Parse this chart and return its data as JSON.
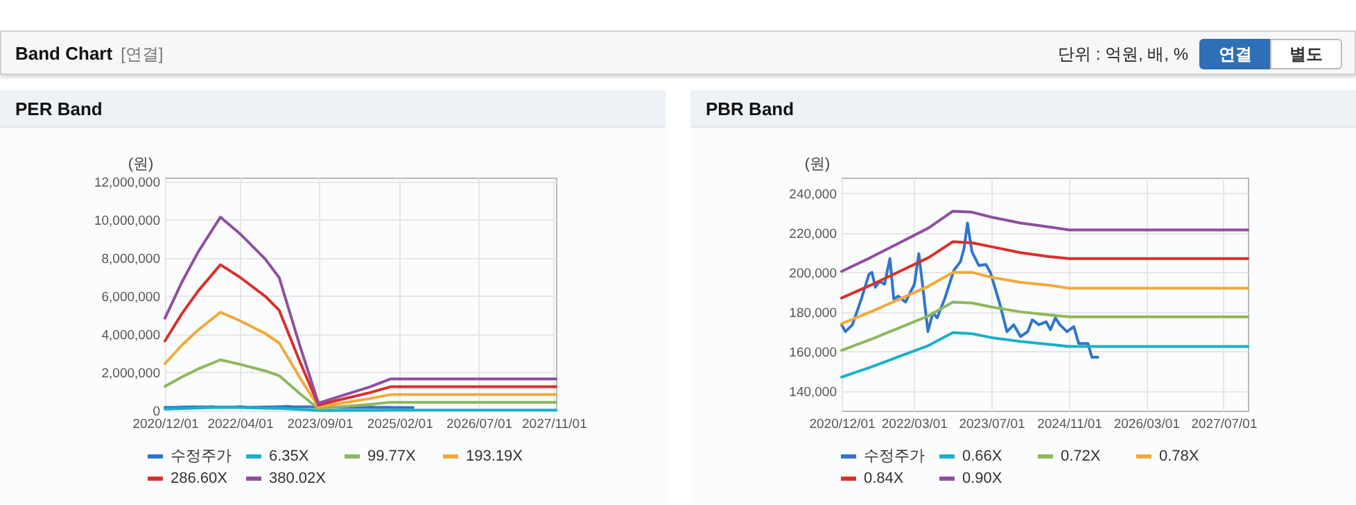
{
  "chart_data": [
    {
      "type": "other",
      "title": "Band Chart",
      "annotations": [
        "[연결]",
        "단위 : 억원, 배, %",
        "연결",
        "별도"
      ]
    },
    {
      "type": "line",
      "title": "PER Band",
      "ylabel": "(원)",
      "xlim": [
        "2020-12-01",
        "2027-11-15"
      ],
      "xticks": [
        {
          "value": "2020-12-01",
          "label": "2020/12/01"
        },
        {
          "value": "2022-04-01",
          "label": "2022/04/01"
        },
        {
          "value": "2023-09-01",
          "label": "2023/09/01"
        },
        {
          "value": "2025-02-01",
          "label": "2025/02/01"
        },
        {
          "value": "2026-07-01",
          "label": "2026/07/01"
        },
        {
          "value": "2027-11-01",
          "label": "2027/11/01"
        }
      ],
      "ylim": [
        0,
        12200000
      ],
      "yticks": [
        0,
        {
          "value": 2000000,
          "label": "2,000,000"
        },
        {
          "value": 4000000,
          "label": "4,000,000"
        },
        {
          "value": 6000000,
          "label": "6,000,000"
        },
        {
          "value": 8000000,
          "label": "8,000,000"
        },
        {
          "value": 10000000,
          "label": "10,000,000"
        },
        {
          "value": 12000000,
          "label": "12,000,000"
        }
      ],
      "grid": true,
      "legend": "bottom",
      "x": [
        "2020-12-01",
        "2021-03-20",
        "2021-07-04",
        "2021-11-26",
        "2022-04-01",
        "2022-09-13",
        "2022-12-13",
        "2023-04-25",
        "2023-08-25",
        "2023-11-25",
        "2024-07-22",
        "2024-12-04",
        "2027-11-15"
      ],
      "series": [
        {
          "name": "수정주가",
          "color": "#2f75cc",
          "x": [
            "2020-12-01",
            "2020-12-25",
            "2021-02-07",
            "2021-04-04",
            "2021-05-22",
            "2021-06-10",
            "2021-07-01",
            "2021-07-28",
            "2021-08-28",
            "2021-10-01",
            "2021-10-25",
            "2021-11-22",
            "2022-01-07",
            "2022-03-04",
            "2022-04-01",
            "2022-05-01",
            "2022-05-28",
            "2022-06-28",
            "2022-07-25",
            "2022-09-10",
            "2022-11-07",
            "2022-12-19",
            "2023-01-10",
            "2023-02-01",
            "2023-03-01",
            "2023-04-13",
            "2023-05-28",
            "2023-06-25",
            "2023-08-22",
            "2023-10-07",
            "2023-11-19",
            "2024-01-01",
            "2024-02-15",
            "2024-03-15",
            "2024-04-25",
            "2024-06-10",
            "2024-07-07",
            "2024-08-07",
            "2024-09-04",
            "2024-10-19",
            "2024-12-01",
            "2025-01-01",
            "2025-02-28",
            "2025-03-25",
            "2025-05-01"
          ],
          "values": [
            170000,
            170000,
            170000,
            190000,
            200000,
            200000,
            190000,
            200000,
            190000,
            210000,
            190000,
            190000,
            190000,
            190000,
            210000,
            190000,
            170000,
            180000,
            180000,
            190000,
            200000,
            210000,
            210000,
            230000,
            210000,
            200000,
            200000,
            200000,
            180000,
            170000,
            170000,
            170000,
            170000,
            180000,
            170000,
            180000,
            170000,
            180000,
            170000,
            170000,
            170000,
            160000,
            160000,
            160000,
            160000
          ]
        },
        {
          "name": "6.35X",
          "color": "#1ab0c8",
          "values": [
            80000,
            110000,
            140000,
            170000,
            160000,
            130000,
            120000,
            60000,
            10000,
            10000,
            20000,
            30000,
            30000
          ]
        },
        {
          "name": "99.77X",
          "color": "#8cb85c",
          "values": [
            1270000,
            1760000,
            2180000,
            2660000,
            2430000,
            2080000,
            1830000,
            900000,
            100000,
            170000,
            330000,
            440000,
            440000
          ]
        },
        {
          "name": "193.19X",
          "color": "#f2a93b",
          "values": [
            2460000,
            3420000,
            4220000,
            5150000,
            4710000,
            4040000,
            3540000,
            1740000,
            200000,
            320000,
            630000,
            840000,
            840000
          ]
        },
        {
          "name": "286.60X",
          "color": "#d9302b",
          "values": [
            3650000,
            5070000,
            6260000,
            7640000,
            6990000,
            5990000,
            5250000,
            2590000,
            290000,
            480000,
            940000,
            1250000,
            1250000
          ]
        },
        {
          "name": "380.02X",
          "color": "#8e4f9d",
          "values": [
            4840000,
            6720000,
            8300000,
            10130000,
            9270000,
            7940000,
            6960000,
            3430000,
            390000,
            630000,
            1240000,
            1660000,
            1660000
          ]
        }
      ]
    },
    {
      "type": "line",
      "title": "PBR Band",
      "ylabel": "(원)",
      "xlim": [
        "2020-12-01",
        "2027-12-01"
      ],
      "xticks": [
        {
          "value": "2020-12-01",
          "label": "2020/12/01"
        },
        {
          "value": "2022-03-01",
          "label": "2022/03/01"
        },
        {
          "value": "2023-07-01",
          "label": "2023/07/01"
        },
        {
          "value": "2024-11-01",
          "label": "2024/11/01"
        },
        {
          "value": "2026-03-01",
          "label": "2026/03/01"
        },
        {
          "value": "2027-07-01",
          "label": "2027/07/01"
        }
      ],
      "ylim": [
        130000,
        248000
      ],
      "yticks": [
        {
          "value": 140000,
          "label": "140,000"
        },
        {
          "value": 160000,
          "label": "160,000"
        },
        {
          "value": 180000,
          "label": "180,000"
        },
        {
          "value": 200000,
          "label": "200,000"
        },
        {
          "value": 220000,
          "label": "220,000"
        },
        {
          "value": 240000,
          "label": "240,000"
        }
      ],
      "grid": true,
      "legend": "bottom",
      "x": [
        "2020-12-01",
        "2021-06-01",
        "2021-12-01",
        "2022-06-01",
        "2022-11-01",
        "2023-03-01",
        "2023-07-01",
        "2024-01-01",
        "2024-07-01",
        "2024-11-01",
        "2027-12-01"
      ],
      "series": [
        {
          "name": "수정주가",
          "color": "#2f75cc",
          "x": [
            "2020-12-01",
            "2020-12-25",
            "2021-02-07",
            "2021-04-04",
            "2021-05-22",
            "2021-06-10",
            "2021-07-01",
            "2021-07-28",
            "2021-08-28",
            "2021-10-01",
            "2021-10-25",
            "2021-11-22",
            "2022-01-07",
            "2022-03-04",
            "2022-04-01",
            "2022-05-01",
            "2022-05-28",
            "2022-06-28",
            "2022-07-25",
            "2022-09-10",
            "2022-11-07",
            "2022-12-19",
            "2023-01-10",
            "2023-02-01",
            "2023-03-01",
            "2023-04-13",
            "2023-05-28",
            "2023-06-25",
            "2023-08-22",
            "2023-10-07",
            "2023-11-19",
            "2024-01-01",
            "2024-02-15",
            "2024-03-15",
            "2024-04-25",
            "2024-06-10",
            "2024-07-07",
            "2024-08-07",
            "2024-09-04",
            "2024-10-19",
            "2024-12-01",
            "2025-01-01",
            "2025-02-28",
            "2025-03-25",
            "2025-05-01"
          ],
          "values": [
            173500,
            170000,
            173500,
            186500,
            199000,
            200000,
            192500,
            195500,
            194000,
            207000,
            186500,
            188000,
            185000,
            194000,
            209500,
            189000,
            170000,
            179500,
            177000,
            186500,
            201000,
            205500,
            212000,
            225000,
            210500,
            203500,
            204000,
            200000,
            184500,
            170000,
            173500,
            167500,
            170000,
            176000,
            173500,
            175000,
            171000,
            177000,
            173500,
            170000,
            172500,
            164000,
            164000,
            157000,
            157000
          ]
        },
        {
          "name": "0.66X",
          "color": "#1ab0c8",
          "values": [
            147000,
            152000,
            157500,
            163000,
            169500,
            169000,
            167000,
            165000,
            163500,
            162500,
            162500
          ]
        },
        {
          "name": "0.72X",
          "color": "#8cb85c",
          "values": [
            160500,
            166000,
            172000,
            178000,
            185000,
            184500,
            182500,
            180000,
            178500,
            177500,
            177500
          ]
        },
        {
          "name": "0.78X",
          "color": "#f2a93b",
          "values": [
            174000,
            180000,
            186500,
            193000,
            200000,
            200000,
            197500,
            195000,
            193500,
            192000,
            192000
          ]
        },
        {
          "name": "0.84X",
          "color": "#d9302b",
          "values": [
            187000,
            193500,
            200500,
            207500,
            215500,
            215000,
            213000,
            210000,
            208000,
            207000,
            207000
          ]
        },
        {
          "name": "0.90X",
          "color": "#8e4f9d",
          "values": [
            200500,
            207500,
            215000,
            222500,
            231000,
            230500,
            228000,
            225000,
            223000,
            221500,
            221500
          ]
        }
      ]
    }
  ]
}
